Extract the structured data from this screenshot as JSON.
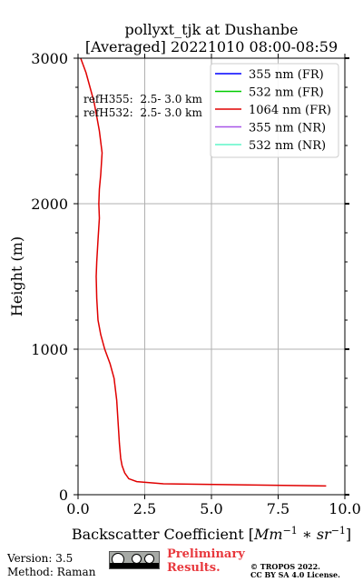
{
  "chart_data": {
    "type": "line",
    "title": "pollyxt_tjk at Dushanbe",
    "subtitle": "[Averaged] 20221010 08:00-08:59",
    "xlabel": "Backscatter Coefficient [Mm^-1 * sr^-1]",
    "ylabel": "Height (m)",
    "xlim": [
      0,
      10
    ],
    "ylim": [
      0,
      3000
    ],
    "xticks": [
      "0.0",
      "2.5",
      "5.0",
      "7.5",
      "10.0"
    ],
    "yticks": [
      "0",
      "1000",
      "2000",
      "3000"
    ],
    "grid": true,
    "legend_position": "top-right",
    "annotations": [
      "refH355:  2.5- 3.0 km",
      "refH532:  2.5- 3.0 km"
    ],
    "series": [
      {
        "name": "355 nm (FR)",
        "color": "#0000ff",
        "x": [],
        "y": []
      },
      {
        "name": "532 nm (FR)",
        "color": "#00cc00",
        "x": [],
        "y": []
      },
      {
        "name": "1064 nm (FR)",
        "color": "#e00000",
        "x": [
          9.3,
          3.2,
          2.2,
          1.9,
          1.75,
          1.65,
          1.6,
          1.55,
          1.5,
          1.45,
          1.35,
          1.2,
          1.0,
          0.85,
          0.75,
          0.7,
          0.68,
          0.7,
          0.75,
          0.8,
          0.78,
          0.8,
          0.85,
          0.9,
          0.8,
          0.7,
          0.6,
          0.45,
          0.3,
          0.1
        ],
        "y": [
          60,
          75,
          90,
          110,
          150,
          200,
          250,
          350,
          500,
          650,
          800,
          900,
          1000,
          1100,
          1200,
          1350,
          1500,
          1600,
          1750,
          1900,
          2000,
          2100,
          2200,
          2350,
          2500,
          2600,
          2700,
          2800,
          2900,
          3000
        ]
      },
      {
        "name": "355 nm (NR)",
        "color": "#a855e8",
        "x": [],
        "y": []
      },
      {
        "name": "532 nm (NR)",
        "color": "#5ff5c8",
        "x": [],
        "y": []
      }
    ]
  },
  "footer": {
    "version": "Version: 3.5",
    "method": "Method: Raman",
    "preliminary_line1": "Preliminary",
    "preliminary_line2": "Results.",
    "copyright_line1": "© TROPOS 2022.",
    "copyright_line2": "CC BY SA 4.0 License."
  },
  "colors": {
    "grid": "#b0b0b0",
    "prelim": "#e8383d"
  }
}
